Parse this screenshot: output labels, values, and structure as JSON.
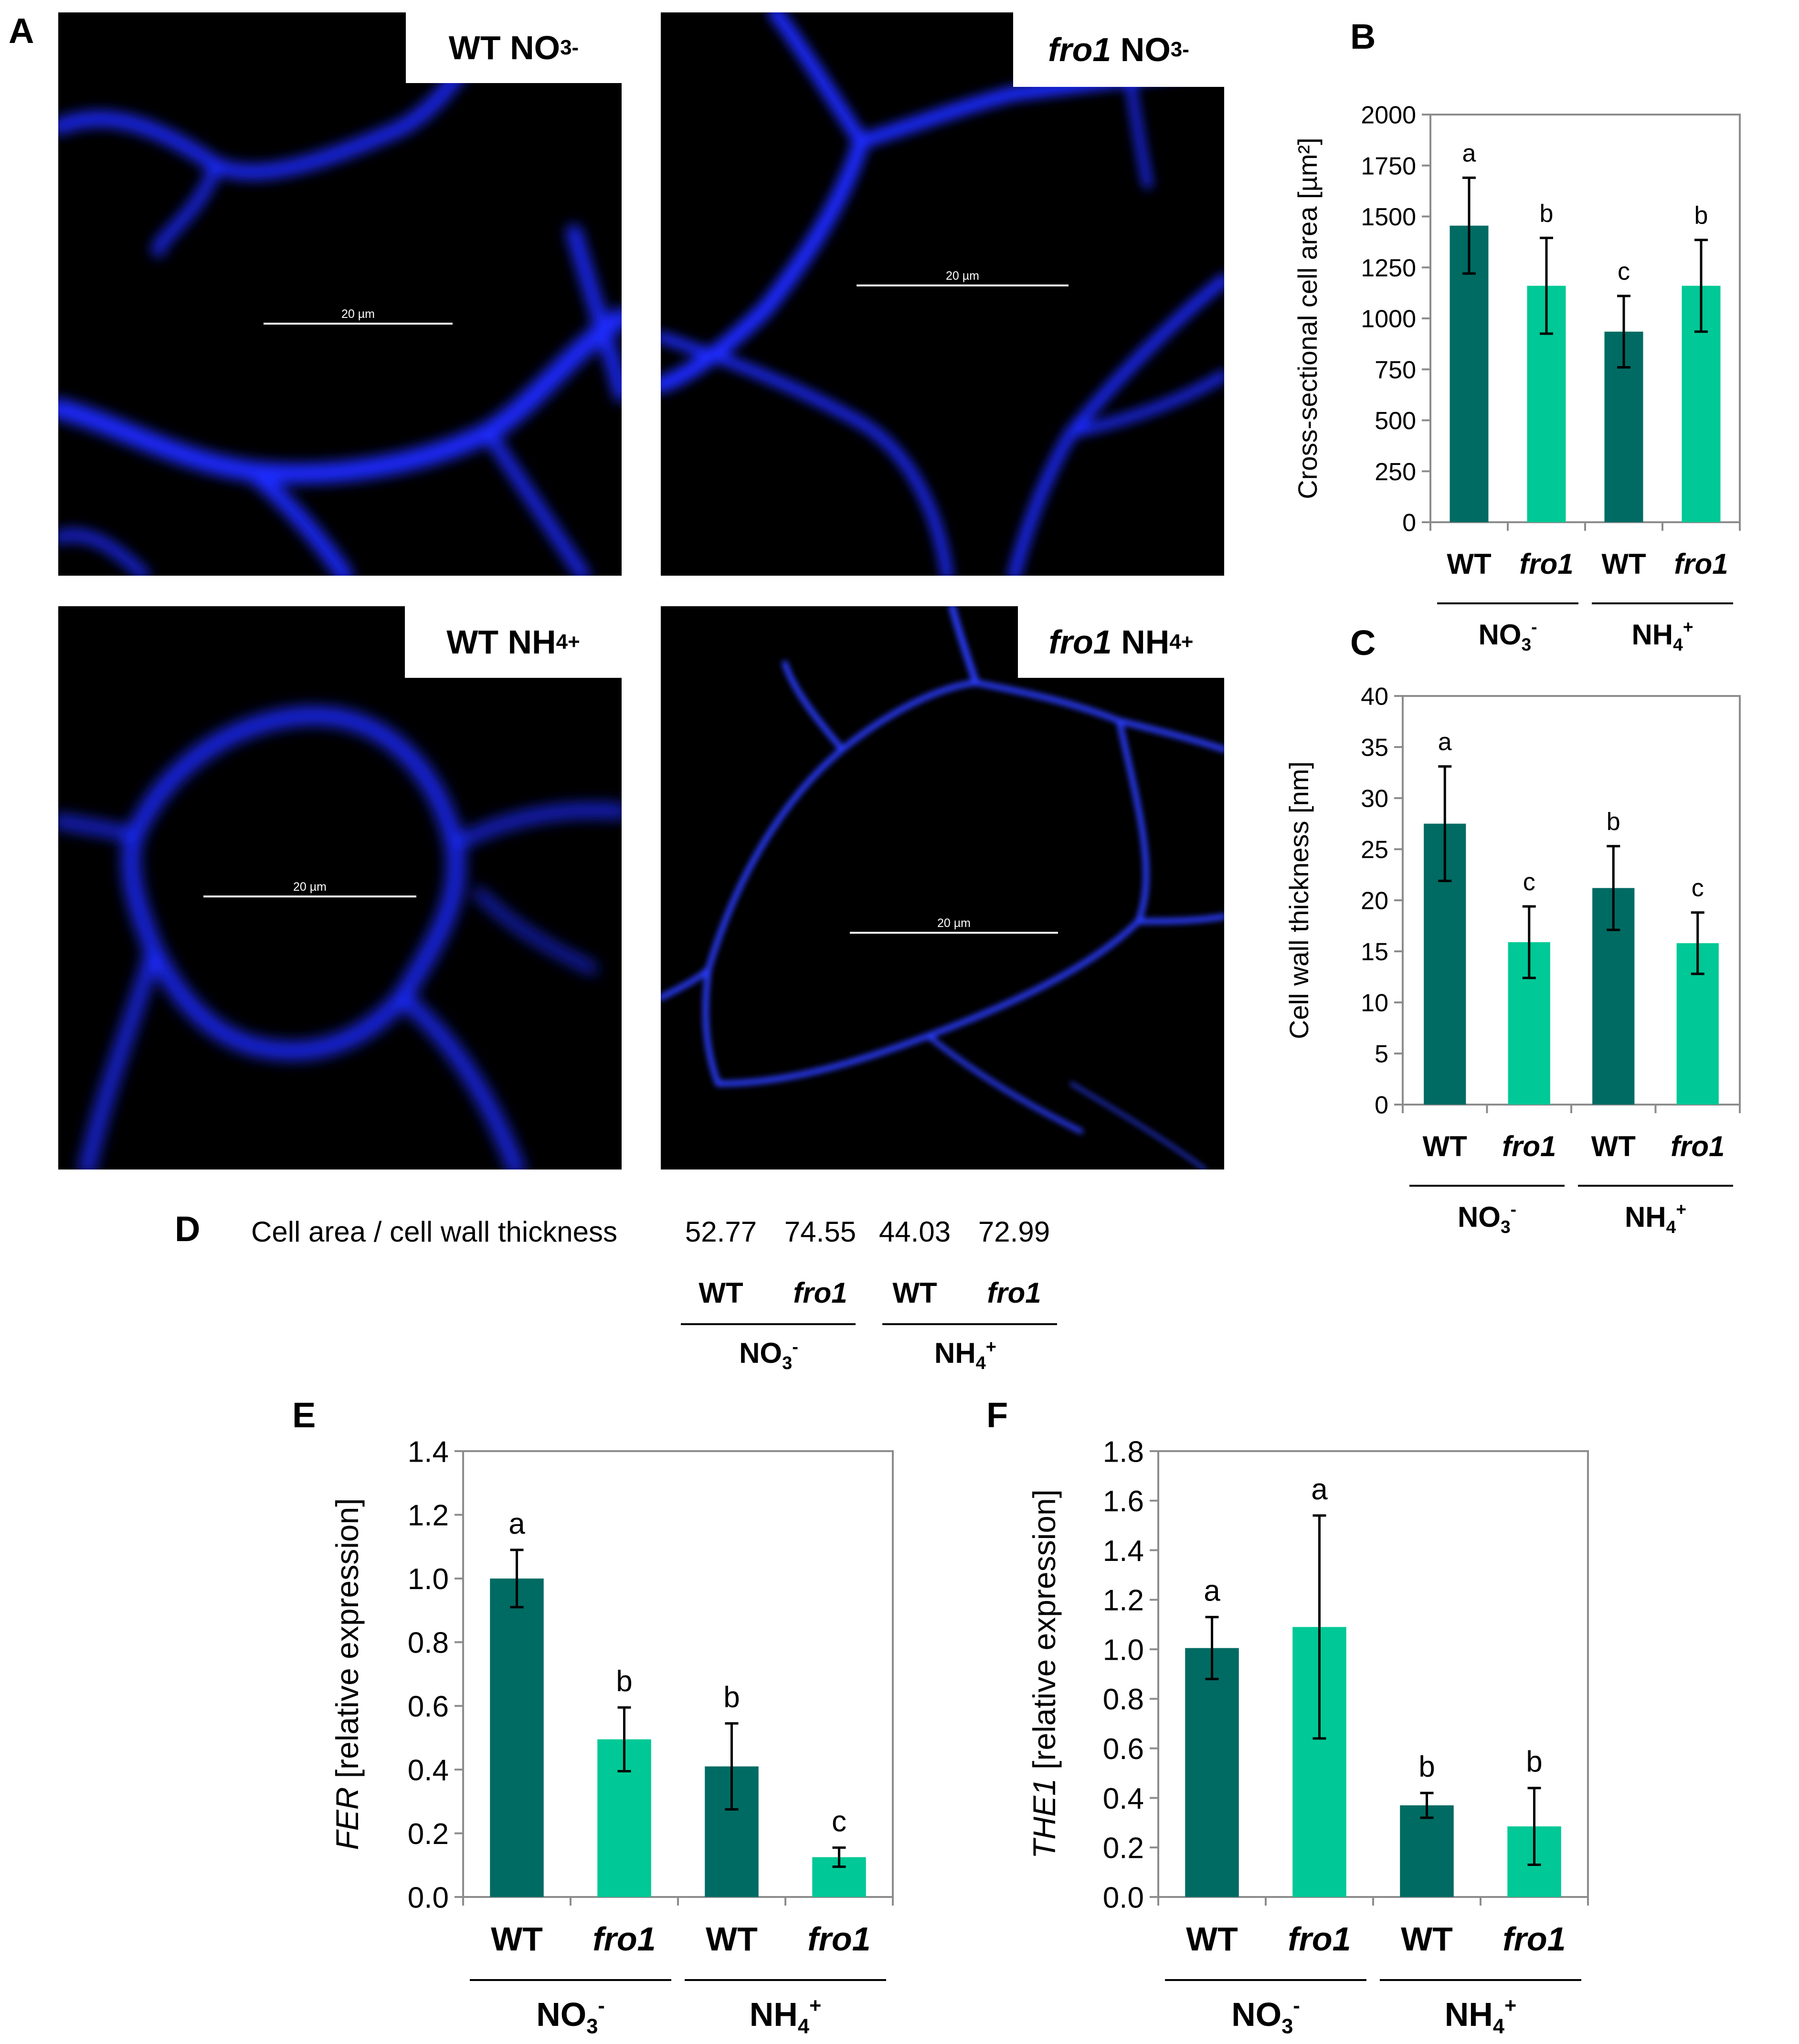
{
  "panels": {
    "a": "A",
    "b": "B",
    "c": "C",
    "d": "D",
    "e": "E",
    "f": "F"
  },
  "micrographs": [
    {
      "genotype": "WT",
      "italic": false,
      "ion": "NO",
      "ion_sub": "3",
      "ion_sup": "-",
      "scale": "20 µm"
    },
    {
      "genotype": "fro1",
      "italic": true,
      "ion": "NO",
      "ion_sub": "3",
      "ion_sup": "-",
      "scale": "20 µm"
    },
    {
      "genotype": "WT",
      "italic": false,
      "ion": "NH",
      "ion_sub": "4",
      "ion_sup": "+",
      "scale": "20 µm"
    },
    {
      "genotype": "fro1",
      "italic": true,
      "ion": "NH",
      "ion_sub": "4",
      "ion_sup": "+",
      "scale": "20 µm"
    }
  ],
  "colors": {
    "wt": "#006b63",
    "fro1": "#00c896",
    "axis": "#8c8c8c",
    "cellwall": "#1a2cff"
  },
  "ratio": {
    "label": "Cell area / cell wall thickness",
    "values": [
      "52.77",
      "74.55",
      "44.03",
      "72.99"
    ],
    "categories": [
      "WT",
      "fro1",
      "WT",
      "fro1"
    ],
    "groups": [
      {
        "ion": "NO",
        "sub": "3",
        "sup": "-"
      },
      {
        "ion": "NH",
        "sub": "4",
        "sup": "+"
      }
    ]
  },
  "chart_data": [
    {
      "id": "B",
      "type": "bar",
      "ylabel": "Cross-sectional cell area [µm²]",
      "ylabel_italic": "",
      "ylim": [
        0,
        2000
      ],
      "yticks": [
        0,
        250,
        500,
        750,
        1000,
        1250,
        1500,
        1750,
        2000
      ],
      "tick_labels": [
        "0",
        "250",
        "500",
        "750",
        "1000",
        "1250",
        "1500",
        "1750",
        "2000"
      ],
      "categories": [
        "WT",
        "fro1",
        "WT",
        "fro1"
      ],
      "groups": [
        "NO3-",
        "NH4+"
      ],
      "values": [
        1455,
        1160,
        935,
        1160
      ],
      "errors": [
        235,
        235,
        175,
        225
      ],
      "letters": [
        "a",
        "b",
        "c",
        "b"
      ]
    },
    {
      "id": "C",
      "type": "bar",
      "ylabel": "Cell wall thickness [nm]",
      "ylabel_italic": "",
      "ylim": [
        0,
        40
      ],
      "yticks": [
        0,
        5,
        10,
        15,
        20,
        25,
        30,
        35,
        40
      ],
      "tick_labels": [
        "0",
        "5",
        "10",
        "15",
        "20",
        "25",
        "30",
        "35",
        "40"
      ],
      "categories": [
        "WT",
        "fro1",
        "WT",
        "fro1"
      ],
      "groups": [
        "NO3-",
        "NH4+"
      ],
      "values": [
        27.5,
        15.9,
        21.2,
        15.8
      ],
      "errors": [
        5.6,
        3.5,
        4.1,
        3.0
      ],
      "letters": [
        "a",
        "c",
        "b",
        "c"
      ]
    },
    {
      "id": "E",
      "type": "bar",
      "ylabel": " [relative expression]",
      "ylabel_italic": "FER",
      "ylim": [
        0,
        1.4
      ],
      "yticks": [
        0,
        0.2,
        0.4,
        0.6,
        0.8,
        1.0,
        1.2,
        1.4
      ],
      "tick_labels": [
        "0.0",
        "0.2",
        "0.4",
        "0.6",
        "0.8",
        "1.0",
        "1.2",
        "1.4"
      ],
      "categories": [
        "WT",
        "fro1",
        "WT",
        "fro1"
      ],
      "groups": [
        "NO3-",
        "NH4+"
      ],
      "values": [
        1.0,
        0.495,
        0.41,
        0.125
      ],
      "errors": [
        0.09,
        0.1,
        0.135,
        0.03
      ],
      "letters": [
        "a",
        "b",
        "b",
        "c"
      ]
    },
    {
      "id": "F",
      "type": "bar",
      "ylabel": " [relative expression]",
      "ylabel_italic": "THE1",
      "ylim": [
        0,
        1.8
      ],
      "yticks": [
        0,
        0.2,
        0.4,
        0.6,
        0.8,
        1.0,
        1.2,
        1.4,
        1.6,
        1.8
      ],
      "tick_labels": [
        "0.0",
        "0.2",
        "0.4",
        "0.6",
        "0.8",
        "1.0",
        "1.2",
        "1.4",
        "1.6",
        "1.8"
      ],
      "categories": [
        "WT",
        "fro1",
        "WT",
        "fro1"
      ],
      "groups": [
        "NO3-",
        "NH4+"
      ],
      "values": [
        1.005,
        1.09,
        0.37,
        0.285
      ],
      "errors": [
        0.125,
        0.45,
        0.05,
        0.155
      ],
      "letters": [
        "a",
        "a",
        "b",
        "b"
      ]
    }
  ]
}
